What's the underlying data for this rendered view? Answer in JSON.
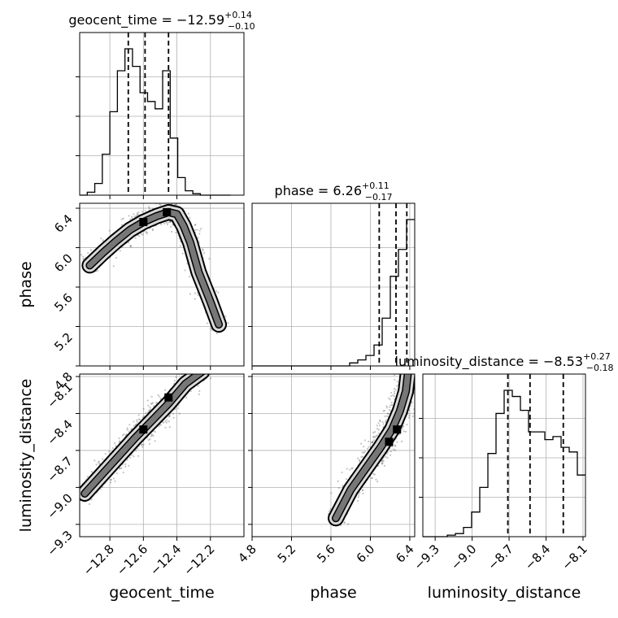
{
  "chart_data": {
    "type": "corner",
    "parameters": [
      {
        "key": "geocent_time",
        "label": "geocent_time",
        "median": "−12.59",
        "upper": "+0.14",
        "lower": "−0.10",
        "title_prefix": "geocent_time = ",
        "range": [
          -12.98,
          -12.0
        ],
        "ticks": [
          -12.8,
          -12.6,
          -12.4,
          -12.2
        ],
        "tick_labels": [
          "−12.8",
          "−12.6",
          "−12.4",
          "−12.2"
        ],
        "quantiles": [
          -12.69,
          -12.59,
          -12.45
        ],
        "hist": {
          "edges": [
            -12.98,
            -12.935,
            -12.89,
            -12.845,
            -12.8,
            -12.755,
            -12.71,
            -12.665,
            -12.62,
            -12.575,
            -12.53,
            -12.485,
            -12.44,
            -12.395,
            -12.35,
            -12.305,
            -12.26,
            -12.215,
            -12.17,
            -12.125,
            -12.08
          ],
          "counts": [
            0.0,
            0.02,
            0.08,
            0.28,
            0.57,
            0.85,
            1.0,
            0.88,
            0.7,
            0.64,
            0.59,
            0.85,
            0.39,
            0.12,
            0.03,
            0.01,
            0.0,
            0.0,
            0.0,
            0.0
          ]
        }
      },
      {
        "key": "phase",
        "label": "phase",
        "median": "6.26",
        "upper": "+0.11",
        "lower": "−0.17",
        "title_prefix": "phase = ",
        "range": [
          4.8,
          6.45
        ],
        "ticks": [
          4.8,
          5.2,
          5.6,
          6.0,
          6.4
        ],
        "tick_labels": [
          "4.8",
          "5.2",
          "5.6",
          "6.0",
          "6.4"
        ],
        "quantiles": [
          6.09,
          6.26,
          6.37
        ],
        "hist": {
          "edges": [
            4.8,
            4.8825,
            4.965,
            5.0475,
            5.13,
            5.2125,
            5.295,
            5.3775,
            5.46,
            5.5425,
            5.625,
            5.7075,
            5.79,
            5.8725,
            5.955,
            6.0375,
            6.12,
            6.2025,
            6.285,
            6.3675,
            6.45
          ],
          "counts": [
            0.0,
            0.0,
            0.0,
            0.0,
            0.0,
            0.0,
            0.0,
            0.0,
            0.0,
            0.0,
            0.0,
            0.0,
            0.02,
            0.04,
            0.07,
            0.14,
            0.32,
            0.6,
            0.78,
            0.98
          ]
        }
      },
      {
        "key": "luminosity_distance",
        "label": "luminosity_distance",
        "median": "−8.53",
        "upper": "+0.27",
        "lower": "−0.18",
        "title_prefix": "luminosity_distance = ",
        "range": [
          -9.4,
          -8.08
        ],
        "ticks": [
          -9.3,
          -9.0,
          -8.7,
          -8.4,
          -8.1
        ],
        "tick_labels": [
          "−9.3",
          "−9.0",
          "−8.7",
          "−8.4",
          "−8.1"
        ],
        "quantiles": [
          -8.71,
          -8.53,
          -8.26
        ],
        "hist": {
          "edges": [
            -9.4,
            -9.334,
            -9.268,
            -9.202,
            -9.136,
            -9.07,
            -9.004,
            -8.938,
            -8.872,
            -8.806,
            -8.74,
            -8.674,
            -8.608,
            -8.542,
            -8.476,
            -8.41,
            -8.344,
            -8.278,
            -8.212,
            -8.146,
            -8.08
          ],
          "counts": [
            0.0,
            0.0,
            0.0,
            0.01,
            0.02,
            0.06,
            0.16,
            0.32,
            0.54,
            0.8,
            0.95,
            0.91,
            0.82,
            0.68,
            0.68,
            0.63,
            0.65,
            0.58,
            0.55,
            0.4
          ]
        }
      }
    ],
    "scatter": {
      "phase_vs_geocent_time": {
        "ridge": [
          [
            -12.92,
            5.82
          ],
          [
            -12.84,
            5.95
          ],
          [
            -12.76,
            6.07
          ],
          [
            -12.68,
            6.18
          ],
          [
            -12.6,
            6.26
          ],
          [
            -12.52,
            6.32
          ],
          [
            -12.45,
            6.36
          ],
          [
            -12.4,
            6.34
          ],
          [
            -12.36,
            6.22
          ],
          [
            -12.32,
            6.05
          ],
          [
            -12.27,
            5.75
          ],
          [
            -12.2,
            5.45
          ],
          [
            -12.15,
            5.22
          ]
        ],
        "modes": [
          [
            -12.6,
            6.26
          ],
          [
            -12.46,
            6.36
          ]
        ]
      },
      "luminosity_distance_vs_geocent_time": {
        "ridge": [
          [
            -12.95,
            -9.05
          ],
          [
            -12.85,
            -8.9
          ],
          [
            -12.75,
            -8.75
          ],
          [
            -12.65,
            -8.6
          ],
          [
            -12.55,
            -8.46
          ],
          [
            -12.45,
            -8.32
          ],
          [
            -12.35,
            -8.16
          ],
          [
            -12.25,
            -8.06
          ]
        ],
        "modes": [
          [
            -12.6,
            -8.53
          ],
          [
            -12.45,
            -8.27
          ]
        ]
      },
      "luminosity_distance_vs_phase": {
        "ridge": [
          [
            5.65,
            -9.25
          ],
          [
            5.8,
            -9.02
          ],
          [
            5.95,
            -8.85
          ],
          [
            6.1,
            -8.68
          ],
          [
            6.22,
            -8.53
          ],
          [
            6.3,
            -8.38
          ],
          [
            6.36,
            -8.22
          ],
          [
            6.38,
            -8.08
          ]
        ],
        "modes": [
          [
            6.19,
            -8.63
          ],
          [
            6.27,
            -8.53
          ]
        ]
      }
    },
    "grid": true
  },
  "colors": {
    "line": "#000000",
    "grid": "#b0b0b0",
    "points": "#555555",
    "contour_fill": "#d9d9d9",
    "contour_core": "#777777"
  }
}
